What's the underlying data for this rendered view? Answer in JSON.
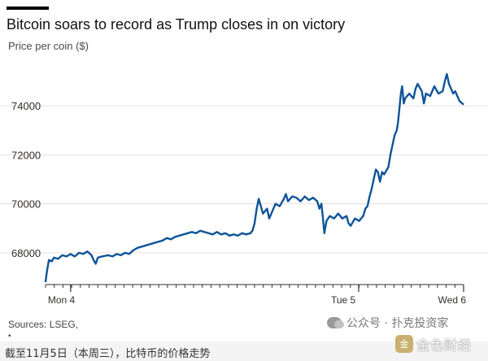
{
  "header": {
    "title": "Bitcoin soars to record as Trump closes in on victory",
    "subtitle": "Price per coin ($)"
  },
  "source_note": "Sources: LSEG,",
  "dot_note": "•",
  "watermark": {
    "text": "公众号 · 扑克投资家",
    "icon": "wechat-icon"
  },
  "footer": {
    "caption": "截至11月5日（本周三），比特币的价格走势"
  },
  "logo": {
    "text": "金色财经",
    "icon_glyph": "金"
  },
  "colors": {
    "line": "#0f5499",
    "grid": "#e6e0dc",
    "axis": "#33302e",
    "topbar": "#000000"
  },
  "chart_data": {
    "type": "line",
    "title": "Bitcoin soars to record as Trump closes in on victory",
    "ylabel": "Price per coin ($)",
    "xlabel": "",
    "ylim": [
      66700,
      75600
    ],
    "xlim": [
      0,
      1
    ],
    "grid": true,
    "yticks": [
      68000,
      70000,
      72000,
      74000
    ],
    "ytick_labels": [
      "68000",
      "70000",
      "72000",
      "74000"
    ],
    "xticks": [
      {
        "label": "Mon 4",
        "pos": 0.06
      },
      {
        "label": "Tue 5",
        "pos": 0.749
      },
      {
        "label": "Wed 6",
        "pos": 1.0
      }
    ],
    "series": [
      {
        "values": [
          [
            0.0,
            66800
          ],
          [
            0.003,
            67200
          ],
          [
            0.008,
            67700
          ],
          [
            0.015,
            67650
          ],
          [
            0.02,
            67800
          ],
          [
            0.03,
            67750
          ],
          [
            0.04,
            67900
          ],
          [
            0.05,
            67850
          ],
          [
            0.06,
            67950
          ],
          [
            0.07,
            67850
          ],
          [
            0.08,
            68000
          ],
          [
            0.09,
            67950
          ],
          [
            0.1,
            68050
          ],
          [
            0.11,
            67900
          ],
          [
            0.115,
            67700
          ],
          [
            0.12,
            67550
          ],
          [
            0.125,
            67800
          ],
          [
            0.135,
            67850
          ],
          [
            0.15,
            67900
          ],
          [
            0.16,
            67850
          ],
          [
            0.17,
            67950
          ],
          [
            0.18,
            67900
          ],
          [
            0.19,
            68000
          ],
          [
            0.2,
            67950
          ],
          [
            0.21,
            68100
          ],
          [
            0.22,
            68200
          ],
          [
            0.24,
            68300
          ],
          [
            0.26,
            68400
          ],
          [
            0.27,
            68450
          ],
          [
            0.28,
            68500
          ],
          [
            0.29,
            68600
          ],
          [
            0.3,
            68550
          ],
          [
            0.31,
            68650
          ],
          [
            0.32,
            68700
          ],
          [
            0.33,
            68750
          ],
          [
            0.34,
            68800
          ],
          [
            0.35,
            68850
          ],
          [
            0.36,
            68800
          ],
          [
            0.37,
            68900
          ],
          [
            0.38,
            68850
          ],
          [
            0.39,
            68800
          ],
          [
            0.4,
            68750
          ],
          [
            0.41,
            68850
          ],
          [
            0.42,
            68750
          ],
          [
            0.43,
            68800
          ],
          [
            0.44,
            68700
          ],
          [
            0.45,
            68750
          ],
          [
            0.46,
            68700
          ],
          [
            0.47,
            68800
          ],
          [
            0.48,
            68750
          ],
          [
            0.49,
            68800
          ],
          [
            0.495,
            68900
          ],
          [
            0.5,
            69200
          ],
          [
            0.505,
            69800
          ],
          [
            0.51,
            70200
          ],
          [
            0.515,
            69900
          ],
          [
            0.52,
            69600
          ],
          [
            0.53,
            69800
          ],
          [
            0.535,
            69400
          ],
          [
            0.54,
            69600
          ],
          [
            0.55,
            70000
          ],
          [
            0.56,
            69900
          ],
          [
            0.57,
            70200
          ],
          [
            0.575,
            70400
          ],
          [
            0.58,
            70100
          ],
          [
            0.59,
            70300
          ],
          [
            0.6,
            70250
          ],
          [
            0.61,
            70100
          ],
          [
            0.62,
            70300
          ],
          [
            0.63,
            70150
          ],
          [
            0.64,
            70250
          ],
          [
            0.65,
            70100
          ],
          [
            0.655,
            69800
          ],
          [
            0.66,
            70000
          ],
          [
            0.663,
            69500
          ],
          [
            0.667,
            68800
          ],
          [
            0.672,
            69300
          ],
          [
            0.68,
            69500
          ],
          [
            0.69,
            69400
          ],
          [
            0.7,
            69600
          ],
          [
            0.71,
            69400
          ],
          [
            0.72,
            69500
          ],
          [
            0.725,
            69200
          ],
          [
            0.73,
            69100
          ],
          [
            0.74,
            69400
          ],
          [
            0.75,
            69300
          ],
          [
            0.76,
            69500
          ],
          [
            0.765,
            69800
          ],
          [
            0.77,
            69900
          ],
          [
            0.775,
            70300
          ],
          [
            0.78,
            70600
          ],
          [
            0.785,
            71000
          ],
          [
            0.79,
            71400
          ],
          [
            0.795,
            71300
          ],
          [
            0.8,
            70900
          ],
          [
            0.805,
            71300
          ],
          [
            0.81,
            71200
          ],
          [
            0.82,
            71500
          ],
          [
            0.825,
            72000
          ],
          [
            0.83,
            72400
          ],
          [
            0.835,
            72800
          ],
          [
            0.84,
            73000
          ],
          [
            0.843,
            73300
          ],
          [
            0.847,
            74000
          ],
          [
            0.85,
            74500
          ],
          [
            0.853,
            74800
          ],
          [
            0.857,
            74100
          ],
          [
            0.86,
            74300
          ],
          [
            0.87,
            74500
          ],
          [
            0.88,
            74300
          ],
          [
            0.885,
            74700
          ],
          [
            0.89,
            74900
          ],
          [
            0.9,
            74600
          ],
          [
            0.905,
            74100
          ],
          [
            0.91,
            74500
          ],
          [
            0.92,
            74400
          ],
          [
            0.93,
            74800
          ],
          [
            0.94,
            74500
          ],
          [
            0.95,
            74600
          ],
          [
            0.955,
            75000
          ],
          [
            0.96,
            75300
          ],
          [
            0.965,
            74900
          ],
          [
            0.97,
            74700
          ],
          [
            0.975,
            74500
          ],
          [
            0.98,
            74600
          ],
          [
            0.985,
            74400
          ],
          [
            0.99,
            74200
          ],
          [
            1.0,
            74050
          ]
        ]
      }
    ]
  }
}
